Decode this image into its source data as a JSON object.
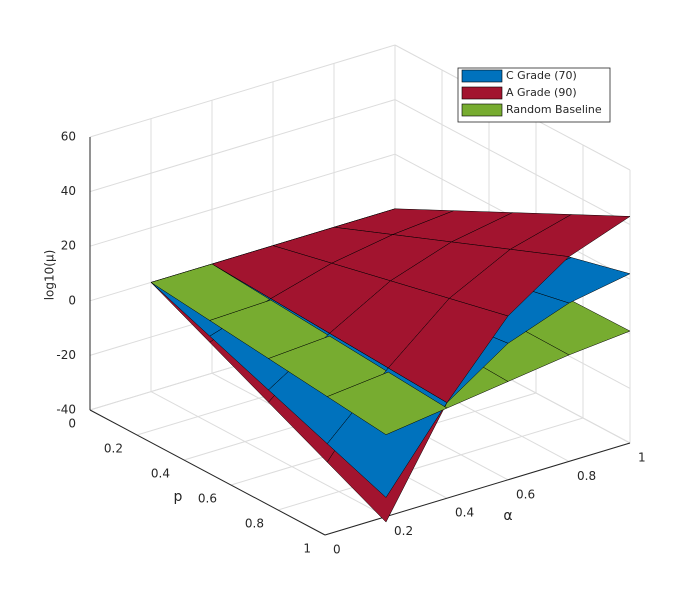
{
  "chart_data": {
    "type": "surface",
    "xlabel": "α",
    "ylabel": "p",
    "zlabel": "log10(μ)",
    "x": [
      0.2,
      0.4,
      0.6,
      0.8,
      1
    ],
    "y": [
      0,
      0.25,
      0.5,
      0.75,
      1
    ],
    "xlim": [
      0,
      1
    ],
    "ylim": [
      0,
      1
    ],
    "zlim": [
      -40,
      60
    ],
    "xticks": [
      0,
      0.2,
      0.4,
      0.6,
      0.8,
      1
    ],
    "yticks": [
      0,
      0.2,
      0.4,
      0.6,
      0.8,
      1
    ],
    "zticks": [
      -40,
      -20,
      0,
      20,
      40,
      60
    ],
    "grid": true,
    "legend": "top-right",
    "series": [
      {
        "name": "C Grade (70)",
        "color": "#0072bd",
        "z": [
          [
            0,
            0,
            0,
            0,
            0
          ],
          [
            -8.25,
            -1.25,
            2.5,
            4.5,
            5.5
          ],
          [
            -16.5,
            -2.5,
            5,
            9,
            11
          ],
          [
            -24.75,
            -3.75,
            7.5,
            13.5,
            16.5
          ],
          [
            -33,
            -5,
            10,
            18,
            22
          ]
        ]
      },
      {
        "name": "A Grade (90)",
        "color": "#a2142f",
        "z": [
          [
            0,
            0,
            0,
            0,
            0
          ],
          [
            -10.5,
            -1.25,
            5,
            8.75,
            10.75
          ],
          [
            -21,
            -2.5,
            10,
            17.5,
            21.5
          ],
          [
            -31.5,
            -3.75,
            15,
            26.25,
            32.25
          ],
          [
            -42,
            -5,
            20,
            35,
            43
          ]
        ]
      },
      {
        "name": "Random Baseline",
        "color": "#77ac30",
        "z": [
          [
            0,
            0,
            0,
            0,
            0
          ],
          [
            -2.5,
            -1.75,
            -1,
            -0.25,
            0.25
          ],
          [
            -5,
            -3.5,
            -2,
            -0.5,
            0.5
          ],
          [
            -7.5,
            -5.25,
            -3,
            -0.75,
            0.75
          ],
          [
            -10,
            -7,
            -4,
            -1,
            1
          ]
        ]
      }
    ]
  }
}
